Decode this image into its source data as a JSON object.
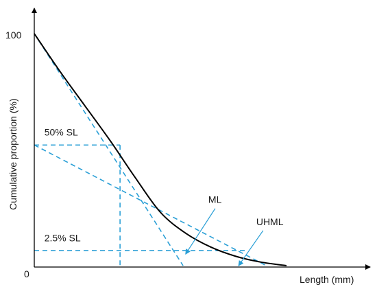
{
  "chart_data": {
    "type": "line",
    "title": "",
    "xlabel": "Length (mm)",
    "ylabel": "Cumulative proportion (%)",
    "xlim": [
      0,
      100
    ],
    "ylim": [
      0,
      100
    ],
    "ticks": {
      "y_top": "100",
      "origin": "0"
    },
    "grid": false,
    "legend": "none",
    "series": [
      {
        "x": [
          0,
          10,
          20,
          30,
          40,
          50,
          60,
          70,
          80,
          90,
          100
        ],
        "y": [
          100,
          84,
          69,
          54,
          38,
          23,
          14,
          8,
          4,
          1.5,
          0
        ]
      }
    ],
    "reference_lines": [
      {
        "from": [
          0,
          100
        ],
        "to": [
          59,
          0
        ]
      },
      {
        "from": [
          0,
          52
        ],
        "to": [
          92,
          0
        ]
      },
      {
        "from": [
          0,
          52
        ],
        "to": [
          34,
          52
        ]
      },
      {
        "from": [
          34,
          52
        ],
        "to": [
          34,
          0
        ]
      },
      {
        "from": [
          0,
          6.5
        ],
        "to": [
          84,
          6.5
        ]
      }
    ],
    "annotations": [
      {
        "text": "50% SL",
        "x": 4,
        "y": 56
      },
      {
        "text": "2.5% SL",
        "x": 4,
        "y": 10.5
      },
      {
        "text": "ML",
        "x": 69,
        "y": 27,
        "arrow_to": [
          60,
          5
        ]
      },
      {
        "text": "UHML",
        "x": 88,
        "y": 17.5,
        "arrow_to": [
          81,
          0
        ]
      }
    ],
    "colors": {
      "curve": "#000000",
      "reference": "#2a9fd6"
    }
  }
}
